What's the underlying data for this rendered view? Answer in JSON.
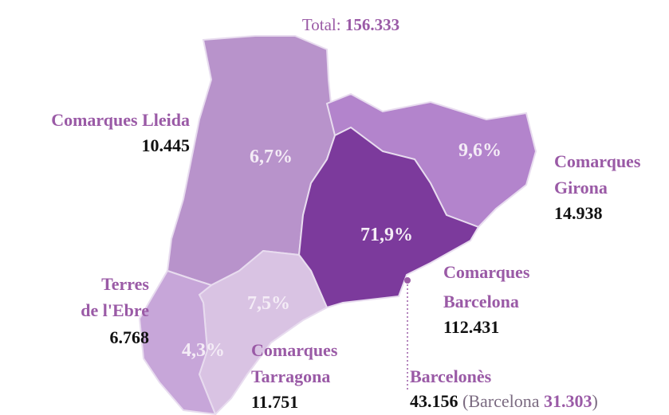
{
  "title": {
    "label": "Total:",
    "value": "156.333"
  },
  "regions": [
    {
      "name_lines": [
        "Comarques Lleida"
      ],
      "value": "10.445",
      "share": "6,7%"
    },
    {
      "name_lines": [
        "Comarques",
        "Girona"
      ],
      "value": "14.938",
      "share": "9,6%"
    },
    {
      "name_lines": [
        "Comarques",
        "Barcelona"
      ],
      "value": "112.431",
      "share": "71,9%"
    },
    {
      "name_lines": [
        "Comarques",
        "Tarragona"
      ],
      "value": "11.751",
      "share": "7,5%"
    },
    {
      "name_lines": [
        "Terres",
        "de l'Ebre"
      ],
      "value": "6.768",
      "share": "4,3%"
    }
  ],
  "barcelones": {
    "name": "Barcelonès",
    "value": "43.156",
    "city_open": "(Barcelona",
    "city_value": "31.303",
    "city_close": ")"
  }
}
